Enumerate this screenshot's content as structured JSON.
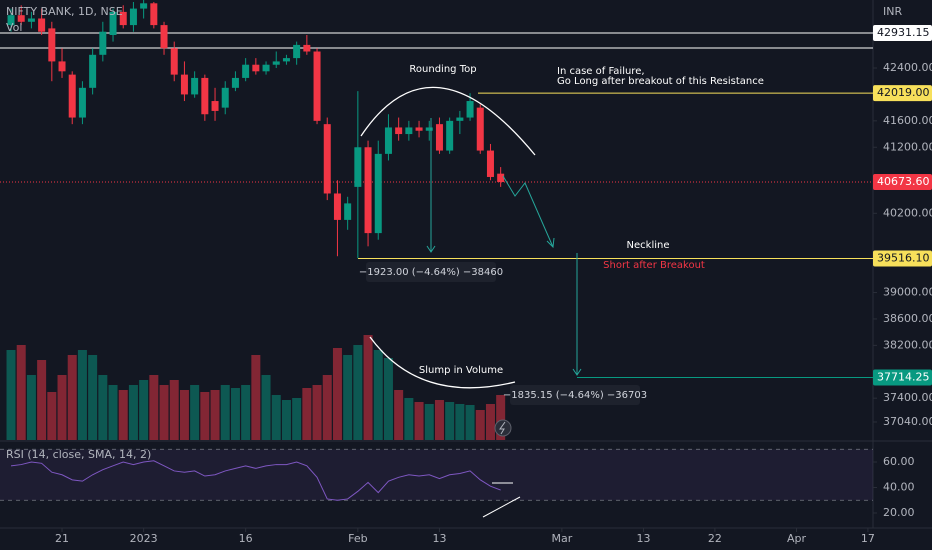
{
  "chart_data": {
    "type": "candlestick",
    "title": "NIFTY BANK, 1D, NSE",
    "volume_label": "Vol",
    "currency": "INR",
    "up_color": "#089981",
    "down_color": "#f23645",
    "categories": [
      null,
      null,
      null,
      null,
      null,
      null,
      null,
      null,
      null,
      null,
      null,
      null,
      null,
      null,
      null,
      null,
      null,
      null,
      null,
      null,
      null,
      null,
      null,
      null,
      null,
      null,
      null,
      null,
      null,
      null,
      null,
      null,
      null,
      null,
      null,
      null,
      null,
      null,
      null,
      null,
      null,
      null,
      null,
      null,
      null,
      null,
      null,
      null,
      null
    ],
    "open": [
      43050,
      43200,
      43100,
      43150,
      43000,
      42500,
      42300,
      41650,
      42100,
      42600,
      42900,
      43250,
      43050,
      43300,
      43380,
      43050,
      42700,
      42300,
      42000,
      42250,
      41900,
      41800,
      42100,
      42250,
      42450,
      42350,
      42450,
      42500,
      42550,
      42750,
      42650,
      41550,
      40500,
      40100,
      40600,
      41200,
      39900,
      41100,
      41500,
      41400,
      41500,
      41450,
      41550,
      41150,
      41600,
      41650,
      41800,
      41150,
      40800
    ],
    "high": [
      43300,
      43350,
      43250,
      43300,
      43100,
      42700,
      42350,
      42200,
      42700,
      43100,
      43300,
      43350,
      43400,
      43450,
      43400,
      43100,
      42800,
      42500,
      42350,
      42300,
      42100,
      42200,
      42350,
      42550,
      42550,
      42500,
      42650,
      42600,
      42800,
      42900,
      42700,
      41650,
      40700,
      40450,
      42050,
      41300,
      41300,
      41700,
      41650,
      41600,
      41600,
      41600,
      41650,
      41650,
      41750,
      42019,
      41850,
      41250,
      40900
    ],
    "low": [
      42950,
      43050,
      43000,
      42900,
      42200,
      42250,
      41550,
      41550,
      42000,
      42500,
      42800,
      43000,
      42950,
      43150,
      43000,
      42600,
      42200,
      41900,
      41950,
      41600,
      41600,
      41700,
      42050,
      42200,
      42300,
      42300,
      42400,
      42450,
      42450,
      42600,
      41550,
      40400,
      39550,
      39950,
      39520,
      39700,
      39800,
      41000,
      41300,
      41300,
      41350,
      41300,
      41100,
      41100,
      41400,
      41600,
      41100,
      40700,
      40600
    ],
    "close": [
      43200,
      43100,
      43150,
      42950,
      42500,
      42350,
      41650,
      42100,
      42600,
      42950,
      43250,
      43050,
      43300,
      43380,
      43050,
      42700,
      42300,
      42000,
      42250,
      41700,
      41750,
      42100,
      42250,
      42450,
      42350,
      42450,
      42500,
      42550,
      42750,
      42650,
      41600,
      40500,
      40100,
      40350,
      41200,
      39900,
      41100,
      41500,
      41400,
      41500,
      41450,
      41500,
      41150,
      41600,
      41650,
      41900,
      41150,
      40750,
      40673.6
    ],
    "volume": [
      90,
      95,
      65,
      80,
      48,
      65,
      85,
      90,
      85,
      65,
      55,
      50,
      55,
      60,
      65,
      55,
      60,
      50,
      55,
      48,
      50,
      55,
      52,
      55,
      85,
      65,
      45,
      40,
      42,
      52,
      55,
      65,
      92,
      85,
      95,
      105,
      90,
      82,
      50,
      42,
      38,
      36,
      40,
      38,
      36,
      35,
      30,
      36,
      45
    ],
    "ylim": [
      36767,
      43430
    ],
    "yticks": [
      {
        "value": 42400,
        "label": "42400.00"
      },
      {
        "value": 41600,
        "label": "41600.00"
      },
      {
        "value": 41200,
        "label": "41200.00"
      },
      {
        "value": 40200,
        "label": "40200.00"
      },
      {
        "value": 39000,
        "label": "39000.00"
      },
      {
        "value": 38600,
        "label": "38600.00"
      },
      {
        "value": 38200,
        "label": "38200.00"
      },
      {
        "value": 37400,
        "label": "37400.00"
      },
      {
        "value": 37040,
        "label": "37040.00"
      }
    ],
    "levels": [
      {
        "value": 42931.15,
        "color": "#ffffff"
      },
      {
        "value": 42019,
        "label": "42019.00",
        "color": "#f7e05b"
      },
      {
        "value": 40673.6,
        "label": "40673.60",
        "color": "#f23645"
      },
      {
        "value": 39516.1,
        "label": "39516.10",
        "color": "#f7e05b"
      },
      {
        "value": 37714.25,
        "color": "#089981"
      }
    ],
    "resistance_line": 42703,
    "xlim": [
      -1.08,
      84.5
    ],
    "xticks": [
      {
        "value": 5,
        "label": "21"
      },
      {
        "value": 13,
        "label": "2023"
      },
      {
        "value": 23,
        "label": "16"
      },
      {
        "value": 34,
        "label": "Feb"
      },
      {
        "value": 42,
        "label": "13"
      },
      {
        "value": 54,
        "label": "Mar"
      },
      {
        "value": 62,
        "label": "13"
      },
      {
        "value": 69,
        "label": "22"
      },
      {
        "value": 77,
        "label": "Apr"
      },
      {
        "value": 84,
        "label": "17"
      }
    ],
    "rsi": {
      "label": "RSI (14, close, SMA, 14, 2)",
      "color": "#7e57c2",
      "values": [
        57,
        58,
        60,
        59,
        52,
        50,
        46,
        45,
        50,
        54,
        57,
        60,
        58,
        60,
        61,
        57,
        53,
        52,
        53,
        49,
        50,
        53,
        55,
        57,
        55,
        57,
        58,
        58,
        60,
        57,
        48,
        31,
        30,
        31,
        37,
        44,
        36,
        45,
        48,
        50,
        49,
        50,
        47,
        50,
        51,
        53,
        46,
        41,
        38
      ],
      "ylim": [
        8.2,
        76.5
      ],
      "band": [
        30,
        70
      ],
      "yticks": [
        {
          "value": 60,
          "label": "60.00"
        },
        {
          "value": 40,
          "label": "40.00"
        },
        {
          "value": 20,
          "label": "20.00"
        }
      ]
    },
    "annotations": {
      "rounding_top": "Rounding Top",
      "failure_line1": "In case of Failure,",
      "failure_line2": "Go Long after breakout of this Resistance",
      "neckline": "Neckline",
      "short": "Short after Breakout",
      "slump": "Slump in Volume",
      "measure1": "−1923.00 (−4.64%) −38460",
      "measure2": "−1835.15 (−4.64%) −36703"
    }
  }
}
